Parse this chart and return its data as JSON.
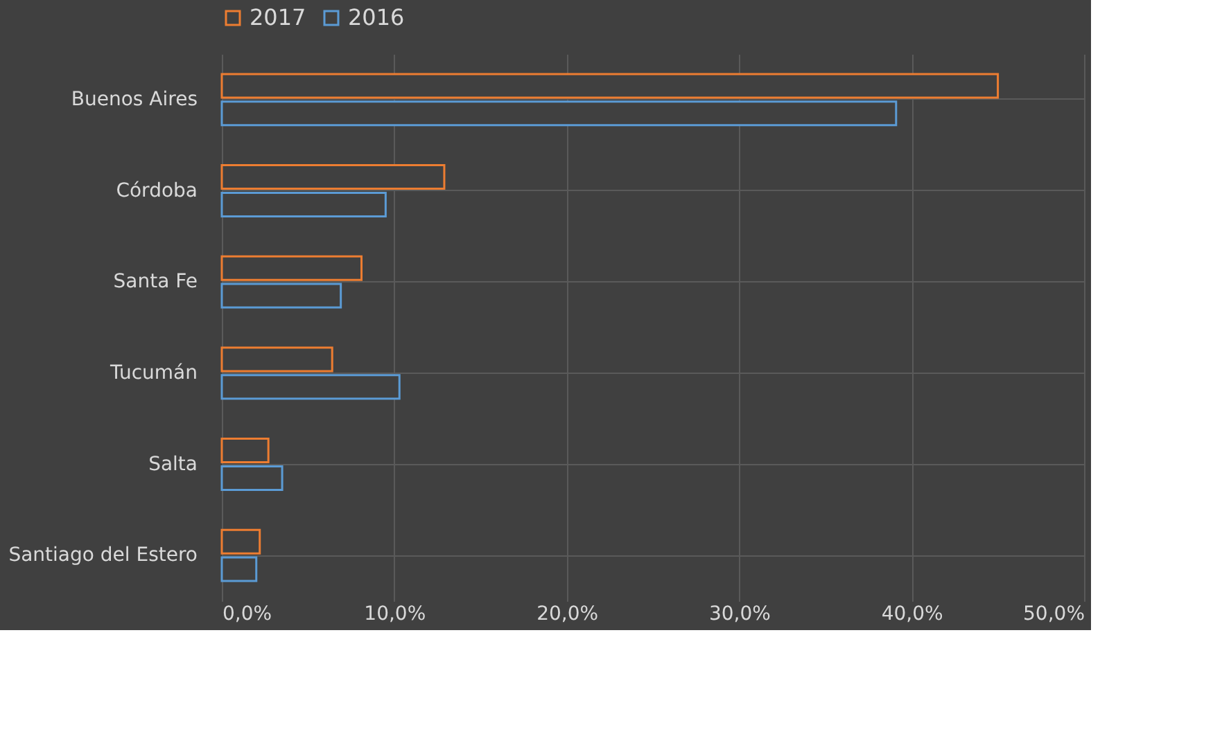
{
  "chart_data": {
    "type": "bar",
    "orientation": "horizontal",
    "categories": [
      "Buenos Aires",
      "Córdoba",
      "Santa Fe",
      "Tucumán",
      "Salta",
      "Santiago del Estero"
    ],
    "series": [
      {
        "name": "2017",
        "color": "#ed7d31",
        "values": [
          45.0,
          12.9,
          8.1,
          6.4,
          2.7,
          2.2
        ]
      },
      {
        "name": "2016",
        "color": "#5b9bd5",
        "values": [
          39.1,
          9.5,
          6.9,
          10.3,
          3.5,
          2.0
        ]
      }
    ],
    "xlim": [
      0,
      50
    ],
    "xticks": [
      {
        "value": 0,
        "label": "0,0%"
      },
      {
        "value": 10,
        "label": "10,0%"
      },
      {
        "value": 20,
        "label": "20,0%"
      },
      {
        "value": 30,
        "label": "30,0%"
      },
      {
        "value": 40,
        "label": "40,0%"
      },
      {
        "value": 50,
        "label": "50,0%"
      }
    ],
    "grid": true,
    "legend": "top"
  }
}
